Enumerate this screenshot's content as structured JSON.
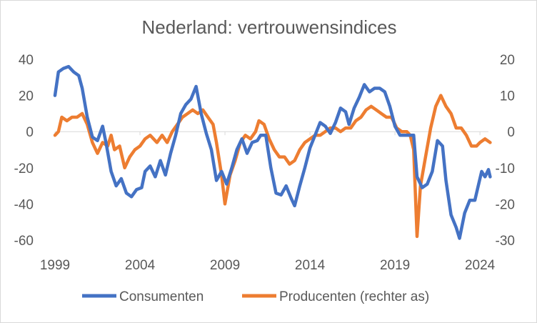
{
  "chart_data": {
    "type": "line",
    "title": "Nederland: vertrouwensindices",
    "x_ticks": [
      "1999",
      "2004",
      "2009",
      "2014",
      "2019",
      "2024"
    ],
    "x_tick_values": [
      1999,
      2004,
      2009,
      2014,
      2019,
      2024
    ],
    "xlim": [
      1999,
      2024.5
    ],
    "y_left": {
      "ylim": [
        -60,
        40
      ],
      "ticks": [
        "40",
        "20",
        "0",
        "-20",
        "-40",
        "-60"
      ],
      "tick_values": [
        40,
        20,
        0,
        -20,
        -40,
        -60
      ]
    },
    "y_right": {
      "ylim": [
        -30,
        20
      ],
      "ticks": [
        "20",
        "10",
        "0",
        "-10",
        "-20",
        "-30"
      ],
      "tick_values": [
        20,
        10,
        0,
        -10,
        -20,
        -30
      ]
    },
    "series": [
      {
        "name": "Consumenten",
        "axis": "left",
        "color": "#4472C4",
        "points": [
          [
            1999.0,
            20
          ],
          [
            1999.2,
            33
          ],
          [
            1999.5,
            35
          ],
          [
            1999.8,
            36
          ],
          [
            2000.1,
            33
          ],
          [
            2000.4,
            31
          ],
          [
            2000.6,
            24
          ],
          [
            2000.9,
            8
          ],
          [
            2001.2,
            -3
          ],
          [
            2001.5,
            -5
          ],
          [
            2001.8,
            3
          ],
          [
            2002.0,
            -6
          ],
          [
            2002.3,
            -22
          ],
          [
            2002.6,
            -30
          ],
          [
            2002.9,
            -26
          ],
          [
            2003.2,
            -34
          ],
          [
            2003.5,
            -36
          ],
          [
            2003.8,
            -32
          ],
          [
            2004.1,
            -31
          ],
          [
            2004.3,
            -22
          ],
          [
            2004.6,
            -19
          ],
          [
            2004.9,
            -25
          ],
          [
            2005.2,
            -16
          ],
          [
            2005.5,
            -24
          ],
          [
            2005.8,
            -12
          ],
          [
            2006.1,
            -2
          ],
          [
            2006.4,
            10
          ],
          [
            2006.7,
            15
          ],
          [
            2007.0,
            18
          ],
          [
            2007.3,
            25
          ],
          [
            2007.6,
            10
          ],
          [
            2007.9,
            -1
          ],
          [
            2008.2,
            -10
          ],
          [
            2008.5,
            -27
          ],
          [
            2008.8,
            -22
          ],
          [
            2009.1,
            -29
          ],
          [
            2009.4,
            -20
          ],
          [
            2009.7,
            -10
          ],
          [
            2010.0,
            -4
          ],
          [
            2010.3,
            -12
          ],
          [
            2010.6,
            -6
          ],
          [
            2010.9,
            -5
          ],
          [
            2011.1,
            -2
          ],
          [
            2011.4,
            -2
          ],
          [
            2011.7,
            -20
          ],
          [
            2012.0,
            -34
          ],
          [
            2012.3,
            -35
          ],
          [
            2012.6,
            -30
          ],
          [
            2012.9,
            -37
          ],
          [
            2013.1,
            -41
          ],
          [
            2013.4,
            -30
          ],
          [
            2013.7,
            -20
          ],
          [
            2014.0,
            -9
          ],
          [
            2014.3,
            -2
          ],
          [
            2014.6,
            5
          ],
          [
            2014.9,
            3
          ],
          [
            2015.2,
            -1
          ],
          [
            2015.5,
            5
          ],
          [
            2015.8,
            13
          ],
          [
            2016.1,
            11
          ],
          [
            2016.3,
            4
          ],
          [
            2016.6,
            13
          ],
          [
            2016.9,
            19
          ],
          [
            2017.2,
            26
          ],
          [
            2017.5,
            22
          ],
          [
            2017.8,
            24
          ],
          [
            2018.1,
            24
          ],
          [
            2018.4,
            22
          ],
          [
            2018.7,
            14
          ],
          [
            2019.0,
            3
          ],
          [
            2019.3,
            -2
          ],
          [
            2019.6,
            -2
          ],
          [
            2019.9,
            -2
          ],
          [
            2020.1,
            -2
          ],
          [
            2020.3,
            -25
          ],
          [
            2020.6,
            -31
          ],
          [
            2020.9,
            -29
          ],
          [
            2021.2,
            -22
          ],
          [
            2021.5,
            -5
          ],
          [
            2021.8,
            -8
          ],
          [
            2022.0,
            -27
          ],
          [
            2022.3,
            -46
          ],
          [
            2022.6,
            -53
          ],
          [
            2022.8,
            -59
          ],
          [
            2023.1,
            -45
          ],
          [
            2023.4,
            -38
          ],
          [
            2023.7,
            -38
          ],
          [
            2023.9,
            -30
          ],
          [
            2024.1,
            -22
          ],
          [
            2024.3,
            -25
          ],
          [
            2024.5,
            -21
          ],
          [
            2024.6,
            -25
          ]
        ]
      },
      {
        "name": "Producenten (rechter as)",
        "axis": "right",
        "color": "#ED7D31",
        "points": [
          [
            1999.0,
            -1
          ],
          [
            1999.2,
            0
          ],
          [
            1999.4,
            4
          ],
          [
            1999.7,
            3
          ],
          [
            2000.0,
            4
          ],
          [
            2000.3,
            4
          ],
          [
            2000.6,
            5
          ],
          [
            2000.9,
            2
          ],
          [
            2001.2,
            -3
          ],
          [
            2001.5,
            -6
          ],
          [
            2001.8,
            -3
          ],
          [
            2002.1,
            -4
          ],
          [
            2002.3,
            -1
          ],
          [
            2002.5,
            -5
          ],
          [
            2002.8,
            -4
          ],
          [
            2003.1,
            -10
          ],
          [
            2003.4,
            -7
          ],
          [
            2003.7,
            -5
          ],
          [
            2004.0,
            -4
          ],
          [
            2004.3,
            -2
          ],
          [
            2004.6,
            -1
          ],
          [
            2005.0,
            -3
          ],
          [
            2005.3,
            -1
          ],
          [
            2005.6,
            -3
          ],
          [
            2005.9,
            0
          ],
          [
            2006.2,
            2
          ],
          [
            2006.5,
            4
          ],
          [
            2006.8,
            5
          ],
          [
            2007.1,
            6
          ],
          [
            2007.4,
            5
          ],
          [
            2007.7,
            6
          ],
          [
            2008.0,
            4
          ],
          [
            2008.3,
            2
          ],
          [
            2008.5,
            -3
          ],
          [
            2008.8,
            -12
          ],
          [
            2009.0,
            -20
          ],
          [
            2009.3,
            -12
          ],
          [
            2009.6,
            -8
          ],
          [
            2009.9,
            -3
          ],
          [
            2010.2,
            -1
          ],
          [
            2010.5,
            -2
          ],
          [
            2010.8,
            0
          ],
          [
            2011.0,
            3
          ],
          [
            2011.3,
            2
          ],
          [
            2011.6,
            -2
          ],
          [
            2011.9,
            -5
          ],
          [
            2012.2,
            -7
          ],
          [
            2012.5,
            -7
          ],
          [
            2012.8,
            -9
          ],
          [
            2013.1,
            -8
          ],
          [
            2013.4,
            -5
          ],
          [
            2013.7,
            -3
          ],
          [
            2014.0,
            -2
          ],
          [
            2014.3,
            -1
          ],
          [
            2014.6,
            -1
          ],
          [
            2014.9,
            0
          ],
          [
            2015.2,
            1
          ],
          [
            2015.5,
            1
          ],
          [
            2015.8,
            0
          ],
          [
            2016.1,
            1
          ],
          [
            2016.4,
            1
          ],
          [
            2016.7,
            3
          ],
          [
            2017.0,
            4
          ],
          [
            2017.3,
            6
          ],
          [
            2017.6,
            7
          ],
          [
            2017.9,
            6
          ],
          [
            2018.2,
            5
          ],
          [
            2018.5,
            4
          ],
          [
            2018.8,
            4
          ],
          [
            2019.1,
            1
          ],
          [
            2019.4,
            0
          ],
          [
            2019.7,
            0
          ],
          [
            2019.9,
            -1
          ],
          [
            2020.1,
            -5
          ],
          [
            2020.3,
            -29
          ],
          [
            2020.5,
            -15
          ],
          [
            2020.8,
            -7
          ],
          [
            2021.1,
            1
          ],
          [
            2021.4,
            7
          ],
          [
            2021.7,
            10
          ],
          [
            2022.0,
            7
          ],
          [
            2022.3,
            5
          ],
          [
            2022.6,
            1
          ],
          [
            2022.9,
            1
          ],
          [
            2023.2,
            -1
          ],
          [
            2023.5,
            -4
          ],
          [
            2023.8,
            -4
          ],
          [
            2024.0,
            -3
          ],
          [
            2024.3,
            -2
          ],
          [
            2024.6,
            -3
          ]
        ]
      }
    ]
  }
}
